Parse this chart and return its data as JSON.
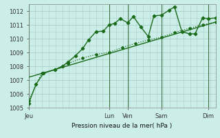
{
  "title": "",
  "xlabel": "Pression niveau de la mer( hPa )",
  "ylabel": "",
  "background_color": "#cceee8",
  "grid_color": "#aacccc",
  "line_color": "#1a6b1a",
  "ylim": [
    1005,
    1012.5
  ],
  "yticks": [
    1005,
    1006,
    1007,
    1008,
    1009,
    1010,
    1011,
    1012
  ],
  "x_tick_labels": [
    "Jeu",
    "Lun",
    "Ven",
    "Sam",
    "Dim"
  ],
  "x_tick_positions": [
    0.0,
    0.43,
    0.53,
    0.71,
    0.96
  ],
  "vline_positions": [
    0.0,
    0.43,
    0.53,
    0.71,
    0.96
  ],
  "xlim": [
    0,
    1.0
  ],
  "series1_x": [
    0.0,
    0.04,
    0.08,
    0.14,
    0.18,
    0.21,
    0.25,
    0.29,
    0.32,
    0.36,
    0.4,
    0.43,
    0.46,
    0.49,
    0.53,
    0.56,
    0.6,
    0.64,
    0.67,
    0.71,
    0.75,
    0.78,
    0.82,
    0.86,
    0.89,
    0.93,
    0.96,
    1.0
  ],
  "series1_y": [
    1005.3,
    1006.7,
    1007.5,
    1007.75,
    1008.0,
    1008.3,
    1008.75,
    1009.3,
    1009.9,
    1010.5,
    1010.55,
    1011.0,
    1011.1,
    1011.45,
    1011.15,
    1011.6,
    1010.85,
    1010.15,
    1011.65,
    1011.7,
    1012.05,
    1012.3,
    1010.5,
    1010.35,
    1010.35,
    1011.5,
    1011.45,
    1011.5
  ],
  "series2_x": [
    0.0,
    0.07,
    0.14,
    0.21,
    0.29,
    0.36,
    0.43,
    0.5,
    0.57,
    0.64,
    0.71,
    0.78,
    0.86,
    0.93,
    1.0
  ],
  "series2_y": [
    1005.5,
    1007.5,
    1007.75,
    1008.2,
    1008.6,
    1008.85,
    1009.0,
    1009.35,
    1009.65,
    1009.9,
    1010.1,
    1010.45,
    1010.75,
    1011.0,
    1011.2
  ],
  "trend_x": [
    0.0,
    1.0
  ],
  "trend_y": [
    1007.2,
    1011.2
  ]
}
